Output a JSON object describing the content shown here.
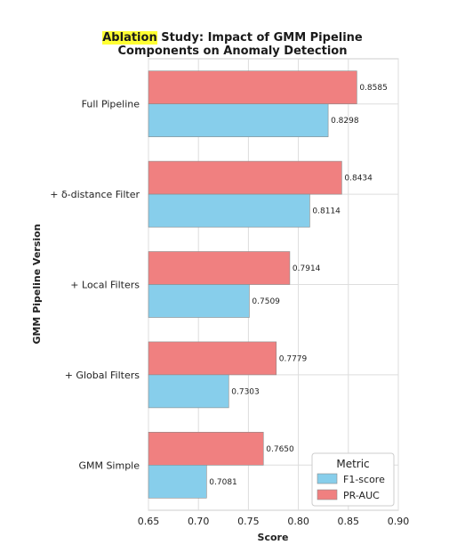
{
  "chart_data": {
    "type": "bar",
    "orientation": "horizontal",
    "title_highlight": "Ablation",
    "title_rest_line1": " Study: Impact of GMM Pipeline",
    "title_line2": "Components on Anomaly Detection",
    "categories": [
      "Full Pipeline",
      "+ δ-distance Filter",
      "+ Local Filters",
      "+ Global Filters",
      "GMM Simple"
    ],
    "series": [
      {
        "name": "PR-AUC",
        "color": "#f08080",
        "values": [
          0.8585,
          0.8434,
          0.7914,
          0.7779,
          0.765
        ],
        "labels": [
          "0.8585",
          "0.8434",
          "0.7914",
          "0.7779",
          "0.7650"
        ]
      },
      {
        "name": "F1-score",
        "color": "#87ceeb",
        "values": [
          0.8298,
          0.8114,
          0.7509,
          0.7303,
          0.7081
        ],
        "labels": [
          "0.8298",
          "0.8114",
          "0.7509",
          "0.7303",
          "0.7081"
        ]
      }
    ],
    "xlabel": "Score",
    "ylabel": "GMM Pipeline Version",
    "xlim": [
      0.65,
      0.9
    ],
    "xticks": [
      "0.65",
      "0.70",
      "0.75",
      "0.80",
      "0.85",
      "0.90"
    ],
    "grid": true,
    "legend": {
      "title": "Metric",
      "placement": "lower-right",
      "order": [
        "F1-score",
        "PR-AUC"
      ]
    }
  }
}
